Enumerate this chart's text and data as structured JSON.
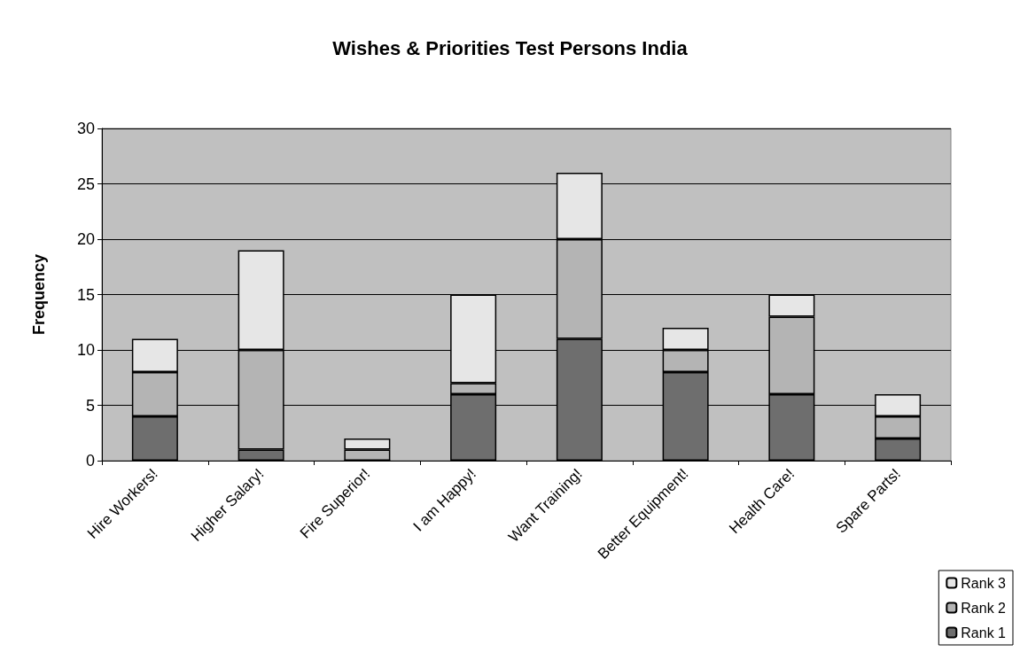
{
  "chart_data": {
    "type": "bar",
    "title": "Wishes & Priorities Test Persons India",
    "ylabel": "Frequency",
    "categories": [
      "Hire Workers!",
      "Higher Salary!",
      "Fire Superior!",
      "I am Happy!",
      "Want Training!",
      "Better Equipment!",
      "Health Care!",
      "Spare Parts!"
    ],
    "series": [
      {
        "name": "Rank 1",
        "color": "#6e6e6e",
        "values": [
          4,
          1,
          0,
          6,
          11,
          8,
          6,
          2
        ]
      },
      {
        "name": "Rank 2",
        "color": "#b4b4b4",
        "values": [
          4,
          9,
          1,
          1,
          9,
          2,
          7,
          2
        ]
      },
      {
        "name": "Rank 3",
        "color": "#e6e6e6",
        "values": [
          3,
          9,
          1,
          8,
          6,
          2,
          2,
          2
        ]
      }
    ],
    "stacked": true,
    "ylim": [
      0,
      30
    ],
    "yticks": [
      0,
      5,
      10,
      15,
      20,
      25,
      30
    ],
    "grid": "y",
    "legend": "bottom right"
  }
}
